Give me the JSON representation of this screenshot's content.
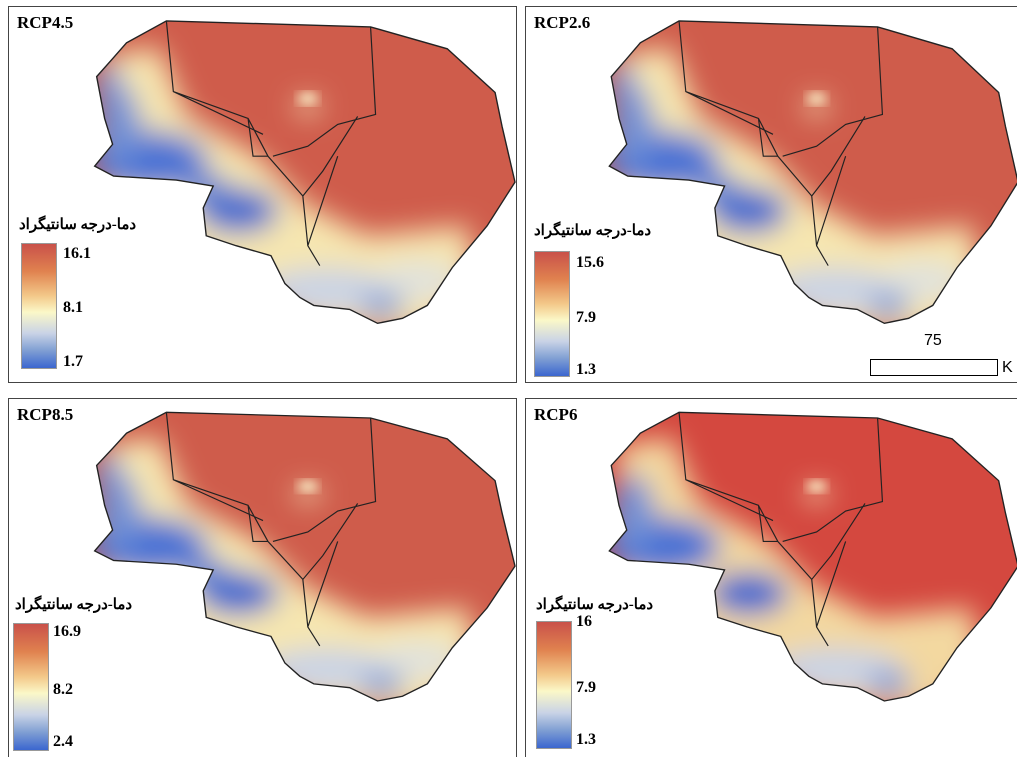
{
  "panels": [
    {
      "scenario": "RCP4.5",
      "legend_title": "دما-درجه سانتیگراد",
      "legend_max": "16.1",
      "legend_mid": "8.1",
      "legend_min": "1.7"
    },
    {
      "scenario": "RCP2.6",
      "legend_title": "دما-درجه سانتیگراد",
      "legend_max": "15.6",
      "legend_mid": "7.9",
      "legend_min": "1.3",
      "scalebar": {
        "value": "75",
        "unit": "K"
      }
    },
    {
      "scenario": "RCP8.5",
      "legend_title": "دما-درجه سانتیگراد",
      "legend_max": "16.9",
      "legend_mid": "8.2",
      "legend_min": "2.4"
    },
    {
      "scenario": "RCP6",
      "legend_title": "دما-درجه سانتیگراد",
      "legend_max": "16",
      "legend_mid": "7.9",
      "legend_min": "1.3"
    }
  ],
  "colors": {
    "warm": "#c9514a",
    "mid": "#fbf8c8",
    "cool": "#3b66cf"
  }
}
